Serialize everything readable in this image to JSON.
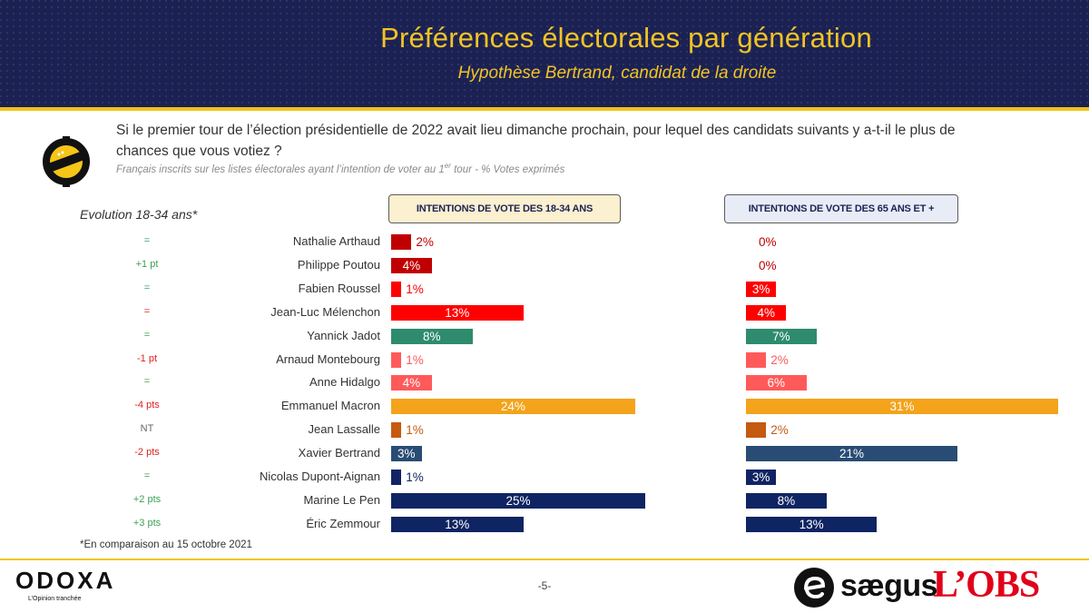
{
  "header": {
    "title": "Préférences électorales par génération",
    "subtitle": "Hypothèse Bertrand, candidat de la droite"
  },
  "question": "Si le premier tour de l’élection présidentielle de 2022 avait lieu dimanche prochain, pour lequel des candidats suivants y a-t-il le plus de chances que vous votiez ?",
  "population": {
    "before": "Français inscrits sur les listes électorales ayant l’intention de voter au 1",
    "sup": "er",
    "after": " tour  - % Votes exprimés"
  },
  "evolution_header": "Evolution 18-34 ans*",
  "footnote": "*En comparaison au 15 octobre 2021",
  "page_number": "-5-",
  "logos": {
    "odoxa": "ODOXA",
    "odoxa_tagline": "L’Opinion tranchée",
    "saegus": "sægus",
    "obs": "L’OBS"
  },
  "colors": {
    "header_bg": "#1b2253",
    "accent_yellow": "#f0c419"
  },
  "chart_data": {
    "type": "bar",
    "orientation": "horizontal",
    "categories": [
      "Nathalie Arthaud",
      "Philippe Poutou",
      "Fabien Roussel",
      "Jean-Luc Mélenchon",
      "Yannick Jadot",
      "Arnaud Montebourg",
      "Anne Hidalgo",
      "Emmanuel Macron",
      "Jean Lassalle",
      "Xavier Bertrand",
      "Nicolas Dupont-Aignan",
      "Marine Le Pen",
      "Éric Zemmour"
    ],
    "colors": [
      "#c00000",
      "#c00000",
      "#ff0000",
      "#ff0000",
      "#2e8b6e",
      "#ff5a5a",
      "#ff5a5a",
      "#f4a31b",
      "#c55a11",
      "#284c74",
      "#0f2462",
      "#0f2462",
      "#0f2462"
    ],
    "evolution": [
      "=",
      "+1 pt",
      "=",
      "=",
      "=",
      "-1 pt",
      "=",
      "-4 pts",
      "NT",
      "-2 pts",
      "=",
      "+2 pts",
      "+3 pts"
    ],
    "evolution_tone": [
      "neu",
      "pos",
      "neu",
      "neg",
      "neu",
      "neg",
      "neu",
      "neg",
      "nt",
      "neg",
      "neu",
      "pos",
      "pos"
    ],
    "series": [
      {
        "name": "INTENTIONS DE VOTE DES 18-34 ANS",
        "values": [
          2,
          4,
          1,
          13,
          8,
          1,
          4,
          24,
          1,
          3,
          1,
          25,
          13
        ],
        "labels": [
          "2%",
          "4%",
          "1%",
          "13%",
          "8%",
          "1%",
          "4%",
          "24%",
          "1%",
          "3%",
          "1%",
          "25%",
          "13%"
        ]
      },
      {
        "name": "INTENTIONS DE VOTE DES 65 ANS ET +",
        "values": [
          0,
          0,
          3,
          4,
          7,
          2,
          6,
          31,
          2,
          21,
          3,
          8,
          13
        ],
        "labels": [
          "0%",
          "0%",
          "3%",
          "4%",
          "7%",
          "2%",
          "6%",
          "31%",
          "2%",
          "21%",
          "3%",
          "8%",
          "13%"
        ]
      }
    ],
    "xlim": [
      0,
      31
    ]
  }
}
